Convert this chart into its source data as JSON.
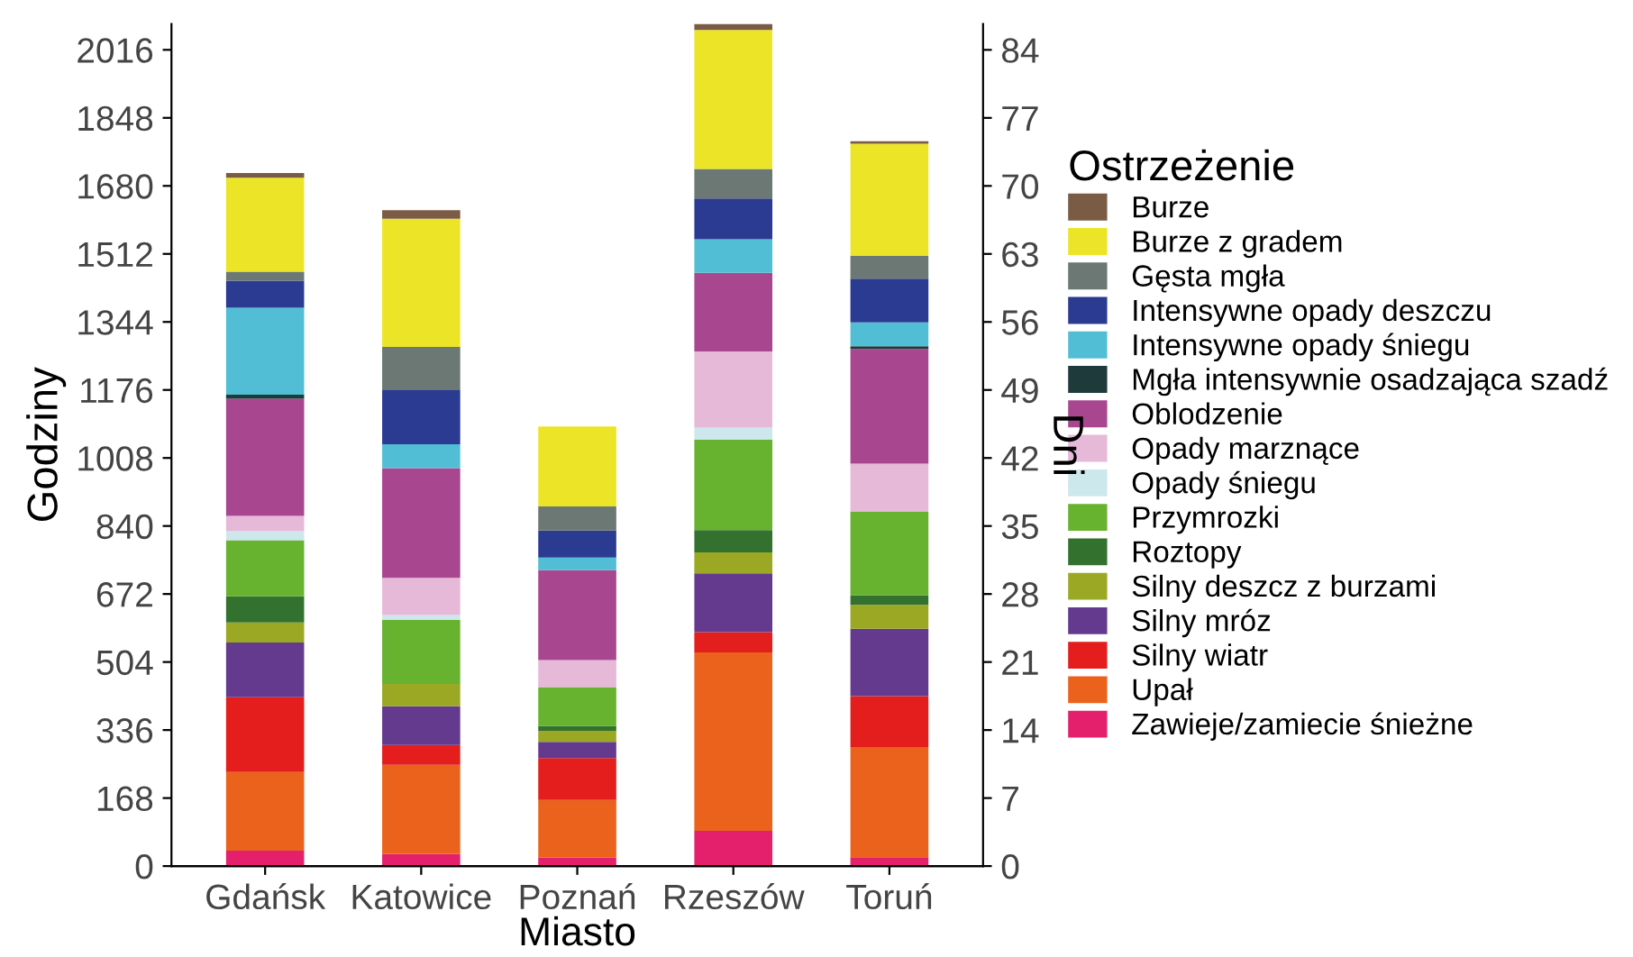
{
  "chart_data": {
    "type": "bar",
    "stacked": true,
    "xlabel": "Miasto",
    "ylabel": "Godziny",
    "y2label": "Dni",
    "legend_title": "Ostrzeżenie",
    "legend": "right",
    "grid": false,
    "categories": [
      "Gdańsk",
      "Katowice",
      "Poznań",
      "Rzeszów",
      "Toruń"
    ],
    "ylim": [
      0,
      2080
    ],
    "yticks": [
      0,
      168,
      336,
      504,
      672,
      840,
      1008,
      1176,
      1344,
      1512,
      1680,
      1848,
      2016
    ],
    "y2lim": [
      0,
      86.67
    ],
    "y2ticks": [
      0,
      7,
      14,
      21,
      28,
      35,
      42,
      49,
      56,
      63,
      70,
      77,
      84
    ],
    "series": [
      {
        "name": "Zawieje/zamiecie śnieżne",
        "color": "#e4206c",
        "values": [
          38,
          30,
          21,
          87,
          22
        ]
      },
      {
        "name": "Upał",
        "color": "#ea621c",
        "values": [
          194,
          220,
          142,
          441,
          272
        ]
      },
      {
        "name": "Silny wiatr",
        "color": "#e31e1d",
        "values": [
          185,
          49,
          104,
          50,
          126
        ]
      },
      {
        "name": "Silny mróz",
        "color": "#643a8f",
        "values": [
          135,
          96,
          40,
          145,
          166
        ]
      },
      {
        "name": "Silny deszcz z burzami",
        "color": "#9aa823",
        "values": [
          50,
          55,
          27,
          52,
          59
        ]
      },
      {
        "name": "Roztopy",
        "color": "#33722e",
        "values": [
          64,
          0,
          12,
          55,
          24
        ]
      },
      {
        "name": "Przymrozki",
        "color": "#67b22f",
        "values": [
          139,
          158,
          96,
          223,
          207
        ]
      },
      {
        "name": "Opady śniegu",
        "color": "#cde8ec",
        "values": [
          22,
          12,
          0,
          30,
          0
        ]
      },
      {
        "name": "Opady marznące",
        "color": "#e6b9d9",
        "values": [
          38,
          92,
          67,
          188,
          118
        ]
      },
      {
        "name": "Oblodzenie",
        "color": "#a8468f",
        "values": [
          289,
          271,
          222,
          194,
          283
        ]
      },
      {
        "name": "Mgła intensywnie osadzająca szadź",
        "color": "#1f3a3a",
        "values": [
          10,
          0,
          0,
          0,
          7
        ]
      },
      {
        "name": "Intensywne opady śniegu",
        "color": "#52bed5",
        "values": [
          215,
          59,
          31,
          83,
          59
        ]
      },
      {
        "name": "Intensywne opady deszczu",
        "color": "#2b3b92",
        "values": [
          67,
          135,
          67,
          101,
          108
        ]
      },
      {
        "name": "Gęsta mgła",
        "color": "#6b7873",
        "values": [
          22,
          105,
          59,
          73,
          56
        ]
      },
      {
        "name": "Burze z gradem",
        "color": "#ece527",
        "values": [
          232,
          317,
          198,
          343,
          277
        ]
      },
      {
        "name": "Burze",
        "color": "#7a5c45",
        "values": [
          12,
          21,
          0,
          15,
          6
        ]
      }
    ]
  }
}
